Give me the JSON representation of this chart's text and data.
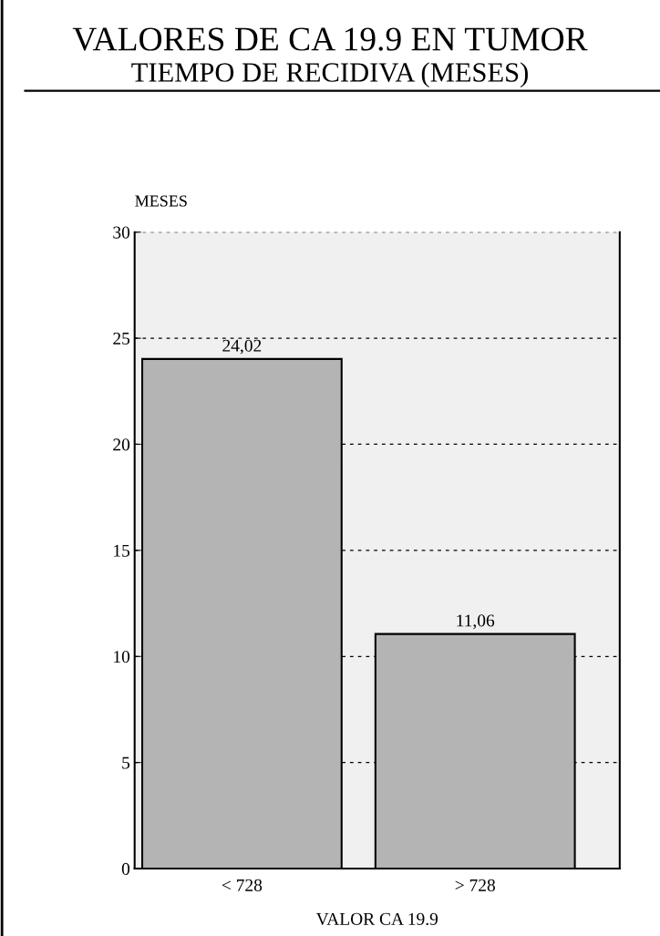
{
  "chart_data": {
    "type": "bar",
    "title": "VALORES DE CA 19.9 EN TUMOR",
    "subtitle": "TIEMPO DE RECIDIVA (MESES)",
    "xlabel": "VALOR CA 19.9",
    "ylabel": "MESES",
    "categories": [
      "< 728",
      "> 728"
    ],
    "values": [
      24.02,
      11.06
    ],
    "value_labels": [
      "24,02",
      "11,06"
    ],
    "color": "#b4b4b4",
    "ylim": [
      0,
      30
    ],
    "yticks": [
      0,
      5,
      10,
      15,
      20,
      25,
      30
    ],
    "grid": "y",
    "legend": false
  }
}
